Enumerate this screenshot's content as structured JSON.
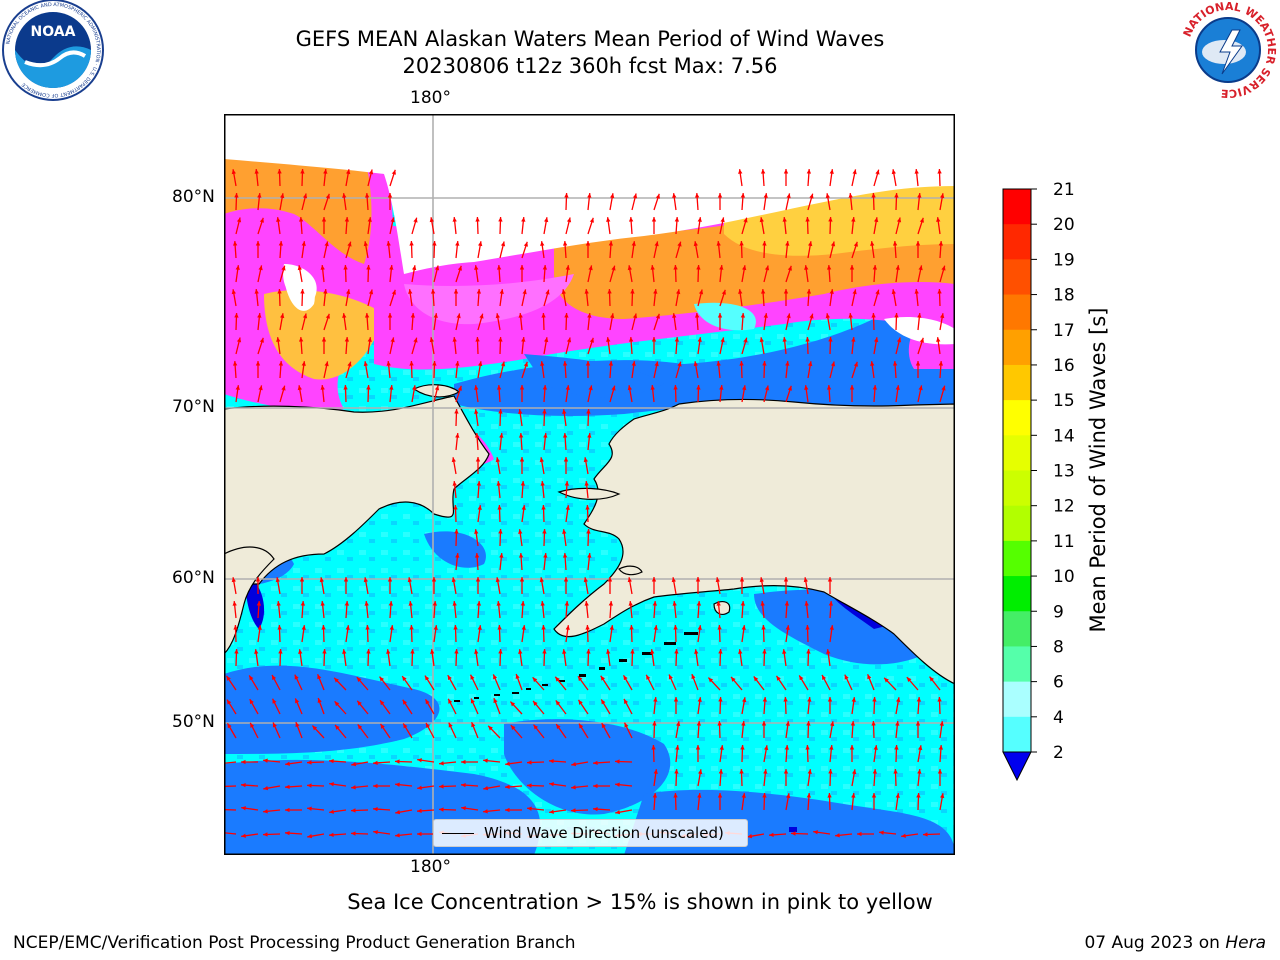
{
  "header": {
    "title_line1": "GEFS MEAN Alaskan Waters Mean Period of Wind Waves",
    "title_line2": "20230806 t12z 360h fcst   Max: 7.56"
  },
  "map": {
    "lon_label_top": "180°",
    "lon_label_bottom": "180°",
    "lat_labels": [
      "80°N",
      "70°N",
      "60°N",
      "50°N"
    ],
    "legend_label": "Wind Wave Direction (unscaled)",
    "colors": {
      "land": "#efebd9",
      "blue_2_4": "#1a7bff",
      "cyan_4_6": "#00ffff",
      "cyan_6_8": "#55ffff",
      "deep_blue": "#0000dd",
      "ice_pink": "#ff44ff",
      "ice_orange": "#ffa030",
      "ice_yellow": "#ffd040",
      "arrow": "#ff0000",
      "grid": "#b0b0b0"
    }
  },
  "colorbar": {
    "title": "Mean Period of Wind Waves [s]",
    "ticks": [
      "21",
      "20",
      "19",
      "18",
      "17",
      "16",
      "15",
      "14",
      "13",
      "12",
      "11",
      "10",
      "9",
      "8",
      "6",
      "4",
      "2"
    ],
    "bands_top_to_bottom": [
      "#ff0000",
      "#ff2800",
      "#ff5000",
      "#ff7800",
      "#ffa000",
      "#ffc800",
      "#ffff00",
      "#e6ff00",
      "#ccff00",
      "#b2ff00",
      "#55ff00",
      "#00ee00",
      "#44ee66",
      "#55ffaa",
      "#aaffff",
      "#55ffff",
      "#00ffff",
      "#1177ff"
    ],
    "under_color": "#0000ee"
  },
  "footer": {
    "note": "Sea Ice Concentration > 15% is shown in pink to yellow",
    "left": "NCEP/EMC/Verification Post Processing Product Generation Branch",
    "right_date": "07 Aug 2023 on",
    "right_machine": "Hera"
  },
  "logos": {
    "noaa": "NOAA",
    "noaa_ring": "NATIONAL OCEANIC AND ATMOSPHERIC ADMINISTRATION · U.S. DEPARTMENT OF COMMERCE",
    "nws_ring": "NATIONAL WEATHER SERVICE"
  }
}
